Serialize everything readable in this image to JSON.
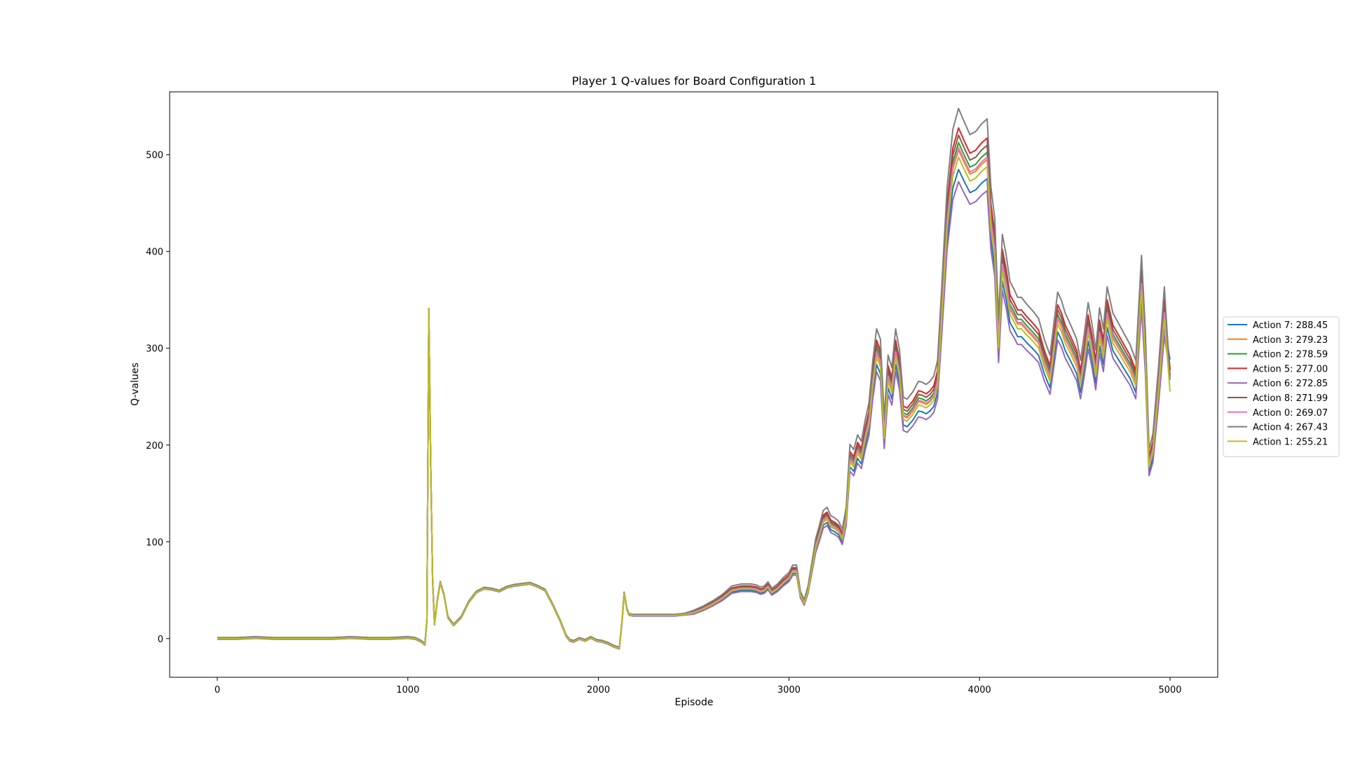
{
  "chart_data": {
    "type": "line",
    "title": "Player 1 Q-values for Board Configuration 1",
    "xlabel": "Episode",
    "ylabel": "Q-values",
    "xlim": [
      -250,
      5250
    ],
    "ylim": [
      -40,
      565
    ],
    "xticks": [
      0,
      1000,
      2000,
      3000,
      4000,
      5000
    ],
    "yticks": [
      0,
      100,
      200,
      300,
      400,
      500
    ],
    "grid": false,
    "legend_position": "right, outside axes",
    "base_curve": {
      "x": [
        0,
        100,
        200,
        300,
        400,
        500,
        600,
        700,
        800,
        900,
        1000,
        1040,
        1070,
        1090,
        1100,
        1110,
        1120,
        1130,
        1140,
        1155,
        1170,
        1190,
        1210,
        1240,
        1280,
        1320,
        1360,
        1400,
        1440,
        1480,
        1520,
        1560,
        1600,
        1640,
        1680,
        1720,
        1760,
        1800,
        1830,
        1850,
        1870,
        1900,
        1930,
        1960,
        1990,
        2020,
        2050,
        2080,
        2110,
        2125,
        2135,
        2150,
        2160,
        2180,
        2200,
        2250,
        2300,
        2350,
        2400,
        2450,
        2500,
        2550,
        2600,
        2650,
        2700,
        2750,
        2800,
        2830,
        2850,
        2870,
        2890,
        2910,
        2940,
        2970,
        3000,
        3020,
        3040,
        3060,
        3080,
        3100,
        3120,
        3140,
        3160,
        3180,
        3200,
        3220,
        3240,
        3260,
        3280,
        3300,
        3320,
        3340,
        3360,
        3380,
        3400,
        3420,
        3440,
        3460,
        3480,
        3500,
        3520,
        3540,
        3560,
        3580,
        3600,
        3620,
        3650,
        3680,
        3700,
        3720,
        3740,
        3760,
        3780,
        3800,
        3830,
        3860,
        3890,
        3920,
        3950,
        3980,
        4010,
        4040,
        4060,
        4080,
        4100,
        4120,
        4140,
        4160,
        4180,
        4200,
        4220,
        4250,
        4280,
        4310,
        4340,
        4370,
        4390,
        4410,
        4430,
        4450,
        4480,
        4510,
        4530,
        4550,
        4570,
        4590,
        4610,
        4630,
        4650,
        4670,
        4700,
        4730,
        4760,
        4790,
        4820,
        4850,
        4870,
        4890,
        4910,
        4940,
        4970,
        5000
      ],
      "y": [
        0,
        0,
        1,
        0,
        0,
        0,
        0,
        1,
        0,
        0,
        1,
        0,
        -3,
        -6,
        20,
        340,
        180,
        60,
        15,
        40,
        58,
        45,
        22,
        14,
        22,
        38,
        48,
        52,
        51,
        49,
        53,
        55,
        56,
        57,
        54,
        50,
        35,
        18,
        3,
        -2,
        -3,
        0,
        -2,
        1,
        -2,
        -3,
        -5,
        -8,
        -10,
        20,
        47,
        30,
        25,
        24,
        24,
        24,
        24,
        24,
        24,
        25,
        27,
        31,
        36,
        42,
        50,
        52,
        52,
        51,
        49,
        50,
        54,
        48,
        52,
        58,
        63,
        70,
        70,
        45,
        37,
        50,
        72,
        95,
        108,
        122,
        125,
        117,
        115,
        112,
        104,
        125,
        185,
        180,
        194,
        188,
        208,
        225,
        265,
        295,
        285,
        210,
        270,
        258,
        295,
        275,
        230,
        228,
        235,
        245,
        244,
        242,
        245,
        250,
        265,
        330,
        430,
        485,
        505,
        492,
        480,
        483,
        490,
        495,
        430,
        400,
        305,
        385,
        365,
        340,
        333,
        325,
        325,
        318,
        312,
        305,
        285,
        270,
        300,
        330,
        322,
        310,
        298,
        285,
        265,
        290,
        320,
        300,
        275,
        315,
        295,
        335,
        310,
        300,
        290,
        280,
        265,
        365,
        295,
        180,
        195,
        260,
        335,
        270
      ]
    },
    "series": [
      {
        "label": "Action 7: 288.45",
        "color": "#1f77b4",
        "offset_scale": -0.04,
        "end_value": 288.45
      },
      {
        "label": "Action 3: 279.23",
        "color": "#ff7f0e",
        "offset_scale": 0.0,
        "end_value": 279.23
      },
      {
        "label": "Action 2: 278.59",
        "color": "#2ca02c",
        "offset_scale": 0.015,
        "end_value": 278.59
      },
      {
        "label": "Action 5: 277.00",
        "color": "#d62728",
        "offset_scale": 0.045,
        "end_value": 277.0
      },
      {
        "label": "Action 6: 272.85",
        "color": "#9467bd",
        "offset_scale": -0.065,
        "end_value": 272.85
      },
      {
        "label": "Action 8: 271.99",
        "color": "#8c564b",
        "offset_scale": 0.03,
        "end_value": 271.99
      },
      {
        "label": "Action 0: 269.07",
        "color": "#e377c2",
        "offset_scale": 0.005,
        "end_value": 269.07
      },
      {
        "label": "Action 4: 267.43",
        "color": "#7f7f7f",
        "offset_scale": 0.085,
        "end_value": 267.43
      },
      {
        "label": "Action 1: 255.21",
        "color": "#bcbd22",
        "offset_scale": -0.015,
        "end_value": 255.21
      }
    ]
  }
}
